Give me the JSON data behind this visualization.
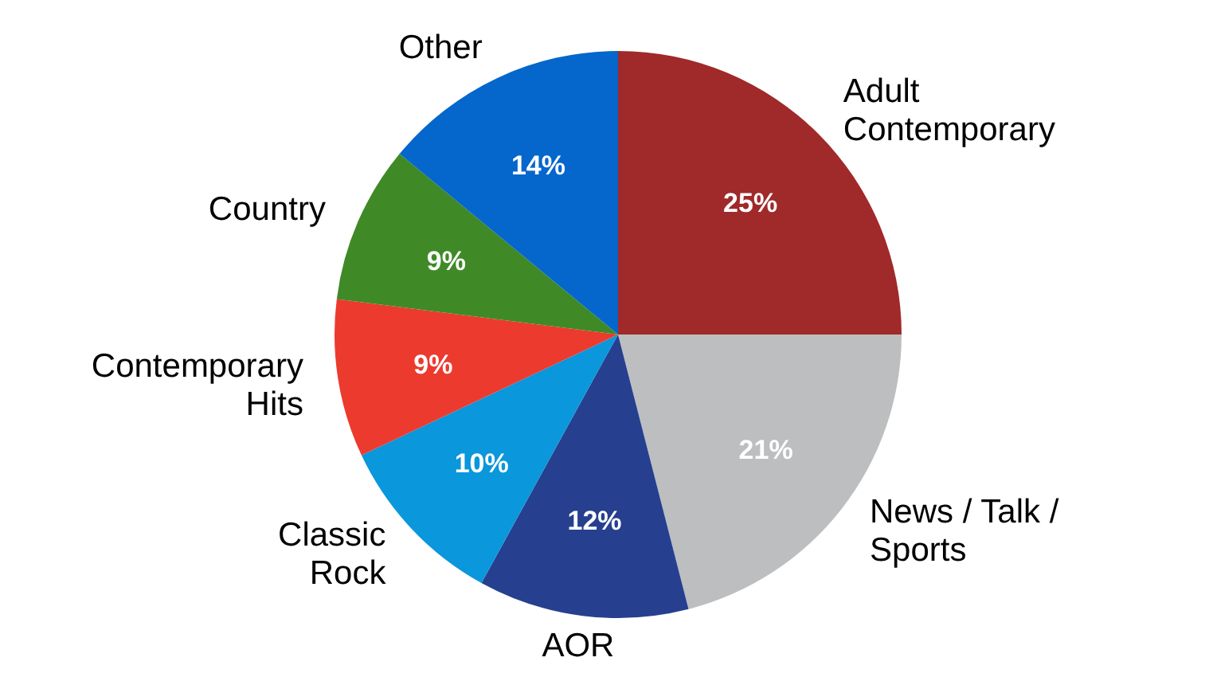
{
  "chart_data": {
    "type": "pie",
    "categories": [
      "Adult\nContemporary",
      "News / Talk /\nSports",
      "AOR",
      "Classic\nRock",
      "Contemporary\nHits",
      "Country",
      "Other"
    ],
    "values": [
      25,
      21,
      12,
      10,
      9,
      9,
      14
    ],
    "colors": [
      "#a0292a",
      "#bcbec0",
      "#263f8f",
      "#0a97db",
      "#ec3a2f",
      "#3f8a26",
      "#0566cc"
    ],
    "value_labels": [
      "25%",
      "21%",
      "12%",
      "10%",
      "9%",
      "9%",
      "14%"
    ]
  }
}
